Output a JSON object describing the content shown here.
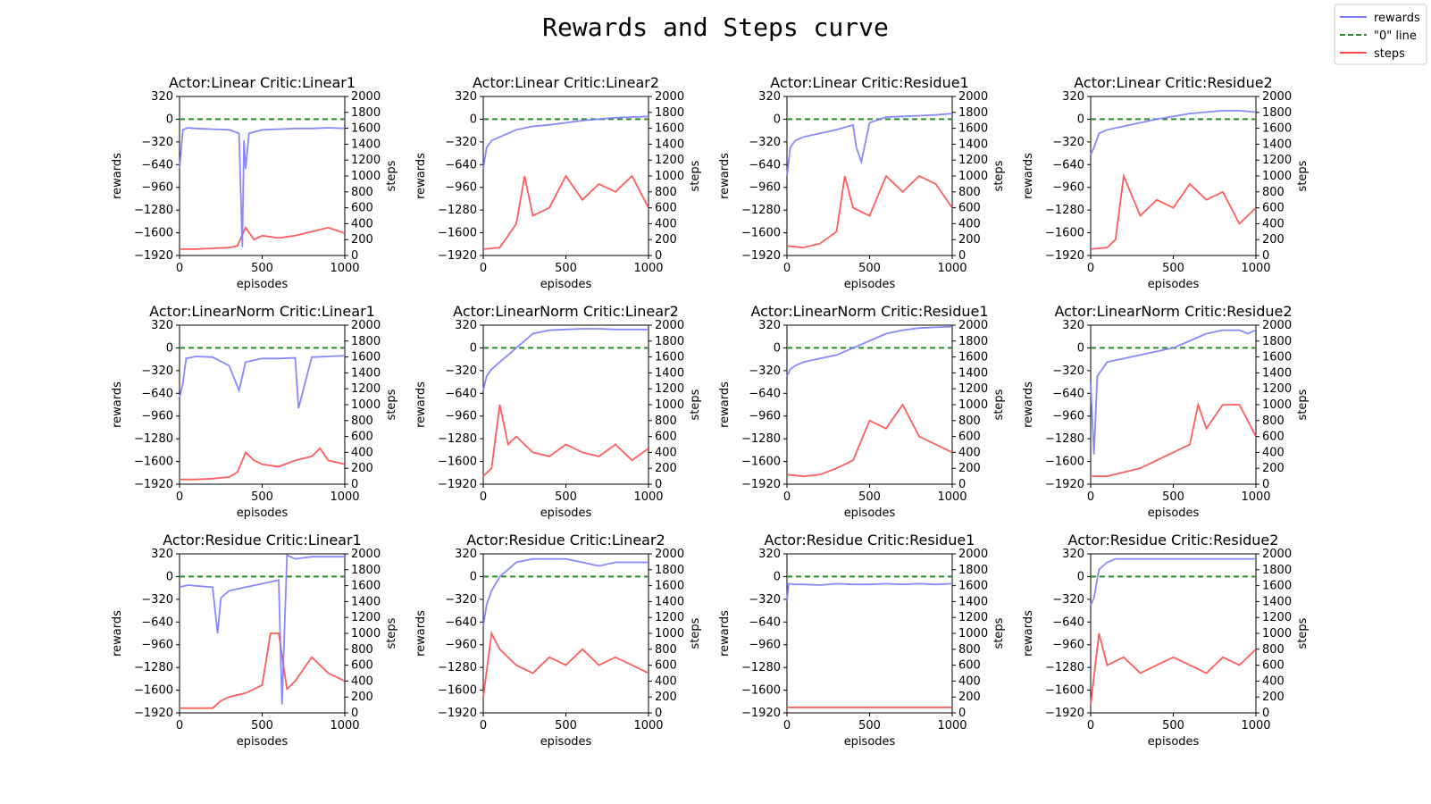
{
  "figure": {
    "title": "Rewards and Steps curve"
  },
  "legend": {
    "placement": "top-right",
    "items": [
      {
        "label": "rewards",
        "color": "#7b7bff",
        "dash": "solid"
      },
      {
        "label": "\"0\" line",
        "color": "#2a8a2a",
        "dash": "dashed"
      },
      {
        "label": "steps",
        "color": "#ff4a4a",
        "dash": "solid"
      }
    ]
  },
  "axes_text": {
    "xlabel": "episodes",
    "ylabel_left": "rewards",
    "ylabel_right": "steps",
    "x_ticks": [
      "0",
      "500",
      "1000"
    ],
    "y_left_ticks": [
      "320",
      "0",
      "−320",
      "−640",
      "−960",
      "−1280",
      "−1600",
      "−1920"
    ],
    "y_right_ticks": [
      "2000",
      "1800",
      "1600",
      "1400",
      "1200",
      "1000",
      "800",
      "600",
      "400",
      "200",
      "0"
    ]
  },
  "chart_data": {
    "type": "line",
    "layout": "3x4 grid of dual-axis subplots",
    "xlim": [
      0,
      1000
    ],
    "ylim_rewards": [
      -1920,
      320
    ],
    "ylim_steps": [
      0,
      2000
    ],
    "series_names": [
      "rewards",
      "\"0\" line",
      "steps"
    ],
    "zero_line": 0,
    "subplots": [
      {
        "title": "Actor:Linear   Critic:Linear1",
        "rewards": {
          "x": [
            0,
            20,
            50,
            100,
            200,
            300,
            360,
            380,
            390,
            400,
            420,
            500,
            600,
            700,
            800,
            900,
            1000
          ],
          "y": [
            -700,
            -150,
            -120,
            -130,
            -140,
            -150,
            -200,
            -1800,
            -300,
            -700,
            -200,
            -150,
            -140,
            -130,
            -130,
            -120,
            -130
          ]
        },
        "steps": {
          "x": [
            0,
            100,
            200,
            300,
            350,
            400,
            450,
            500,
            600,
            700,
            800,
            900,
            1000
          ],
          "y": [
            80,
            80,
            90,
            100,
            120,
            350,
            200,
            250,
            220,
            250,
            300,
            350,
            280
          ]
        }
      },
      {
        "title": "Actor:Linear   Critic:Linear2",
        "rewards": {
          "x": [
            0,
            20,
            50,
            100,
            150,
            200,
            300,
            400,
            500,
            600,
            700,
            800,
            900,
            1000
          ],
          "y": [
            -700,
            -400,
            -300,
            -250,
            -200,
            -150,
            -100,
            -80,
            -50,
            -20,
            0,
            20,
            30,
            40
          ]
        },
        "steps": {
          "x": [
            0,
            100,
            150,
            200,
            250,
            300,
            400,
            500,
            600,
            700,
            800,
            900,
            1000
          ],
          "y": [
            80,
            100,
            250,
            400,
            1000,
            500,
            600,
            1000,
            700,
            900,
            800,
            1000,
            600
          ]
        }
      },
      {
        "title": "Actor:Linear   Critic:Residue1",
        "rewards": {
          "x": [
            0,
            20,
            50,
            100,
            200,
            300,
            400,
            420,
            450,
            500,
            600,
            700,
            800,
            900,
            1000
          ],
          "y": [
            -800,
            -400,
            -300,
            -250,
            -200,
            -150,
            -80,
            -400,
            -600,
            -50,
            30,
            40,
            50,
            60,
            80
          ]
        },
        "steps": {
          "x": [
            0,
            100,
            200,
            300,
            350,
            400,
            500,
            600,
            700,
            800,
            900,
            1000
          ],
          "y": [
            120,
            100,
            150,
            300,
            1000,
            600,
            500,
            1000,
            800,
            1000,
            900,
            600
          ]
        }
      },
      {
        "title": "Actor:Linear   Critic:Residue2",
        "rewards": {
          "x": [
            0,
            20,
            50,
            100,
            200,
            300,
            400,
            500,
            600,
            700,
            800,
            900,
            1000
          ],
          "y": [
            -500,
            -400,
            -200,
            -150,
            -100,
            -50,
            0,
            40,
            80,
            100,
            120,
            120,
            100
          ]
        },
        "steps": {
          "x": [
            0,
            100,
            150,
            200,
            300,
            400,
            500,
            600,
            700,
            800,
            900,
            1000
          ],
          "y": [
            80,
            100,
            200,
            1000,
            500,
            700,
            600,
            900,
            700,
            800,
            400,
            600
          ]
        }
      },
      {
        "title": "Actor:LinearNorm   Critic:Linear1",
        "rewards": {
          "x": [
            0,
            20,
            40,
            100,
            200,
            300,
            360,
            400,
            500,
            600,
            700,
            720,
            800,
            900,
            1000
          ],
          "y": [
            -700,
            -500,
            -150,
            -120,
            -130,
            -250,
            -600,
            -200,
            -150,
            -150,
            -140,
            -850,
            -130,
            -120,
            -110
          ]
        },
        "steps": {
          "x": [
            0,
            100,
            200,
            300,
            350,
            400,
            450,
            500,
            600,
            700,
            800,
            850,
            900,
            1000
          ],
          "y": [
            60,
            60,
            70,
            90,
            150,
            400,
            300,
            250,
            220,
            300,
            350,
            450,
            300,
            250
          ]
        }
      },
      {
        "title": "Actor:LinearNorm   Critic:Linear2",
        "rewards": {
          "x": [
            0,
            20,
            50,
            100,
            150,
            200,
            250,
            300,
            400,
            500,
            600,
            700,
            800,
            900,
            1000
          ],
          "y": [
            -600,
            -400,
            -300,
            -200,
            -100,
            0,
            100,
            200,
            250,
            260,
            270,
            270,
            260,
            260,
            260
          ]
        },
        "steps": {
          "x": [
            0,
            50,
            100,
            150,
            200,
            300,
            400,
            500,
            600,
            700,
            800,
            900,
            1000
          ],
          "y": [
            100,
            200,
            1000,
            500,
            600,
            400,
            350,
            500,
            400,
            350,
            500,
            300,
            450
          ]
        }
      },
      {
        "title": "Actor:LinearNorm   Critic:Residue1",
        "rewards": {
          "x": [
            0,
            20,
            50,
            100,
            200,
            300,
            400,
            500,
            600,
            700,
            800,
            900,
            1000
          ],
          "y": [
            -400,
            -300,
            -250,
            -200,
            -150,
            -100,
            0,
            100,
            200,
            250,
            280,
            290,
            300
          ]
        },
        "steps": {
          "x": [
            0,
            100,
            200,
            300,
            400,
            500,
            600,
            700,
            800,
            900,
            1000
          ],
          "y": [
            120,
            100,
            120,
            200,
            300,
            800,
            700,
            1000,
            600,
            500,
            400
          ]
        }
      },
      {
        "title": "Actor:LinearNorm   Critic:Residue2",
        "rewards": {
          "x": [
            0,
            20,
            40,
            100,
            200,
            300,
            400,
            500,
            600,
            700,
            800,
            900,
            950,
            1000
          ],
          "y": [
            -500,
            -1500,
            -400,
            -200,
            -150,
            -100,
            -50,
            0,
            100,
            200,
            250,
            250,
            200,
            250
          ]
        },
        "steps": {
          "x": [
            0,
            100,
            200,
            300,
            400,
            500,
            600,
            650,
            700,
            800,
            900,
            1000
          ],
          "y": [
            100,
            100,
            150,
            200,
            300,
            400,
            500,
            1000,
            700,
            1000,
            1000,
            600
          ]
        }
      },
      {
        "title": "Actor:Residue   Critic:Linear1",
        "rewards": {
          "x": [
            0,
            50,
            100,
            200,
            230,
            250,
            300,
            400,
            500,
            600,
            620,
            650,
            700,
            800,
            900,
            1000
          ],
          "y": [
            -150,
            -120,
            -130,
            -150,
            -800,
            -300,
            -200,
            -150,
            -100,
            -50,
            -1800,
            300,
            250,
            280,
            280,
            280
          ]
        },
        "steps": {
          "x": [
            0,
            100,
            200,
            250,
            300,
            400,
            500,
            550,
            600,
            650,
            700,
            800,
            900,
            1000
          ],
          "y": [
            60,
            60,
            60,
            150,
            200,
            250,
            350,
            1000,
            1000,
            300,
            400,
            700,
            500,
            400
          ]
        }
      },
      {
        "title": "Actor:Residue   Critic:Linear2",
        "rewards": {
          "x": [
            0,
            20,
            50,
            100,
            150,
            200,
            300,
            400,
            500,
            600,
            700,
            800,
            900,
            1000
          ],
          "y": [
            -700,
            -400,
            -200,
            0,
            100,
            200,
            250,
            250,
            250,
            200,
            150,
            200,
            200,
            200
          ]
        },
        "steps": {
          "x": [
            0,
            50,
            100,
            200,
            300,
            400,
            500,
            600,
            700,
            800,
            900,
            1000
          ],
          "y": [
            200,
            1000,
            800,
            600,
            500,
            700,
            600,
            800,
            600,
            700,
            600,
            500
          ]
        }
      },
      {
        "title": "Actor:Residue   Critic:Residue1",
        "rewards": {
          "x": [
            0,
            10,
            50,
            100,
            200,
            300,
            400,
            500,
            600,
            700,
            800,
            900,
            1000
          ],
          "y": [
            -350,
            -100,
            -110,
            -110,
            -120,
            -100,
            -110,
            -110,
            -100,
            -110,
            -100,
            -110,
            -100
          ]
        },
        "steps": {
          "x": [
            0,
            100,
            200,
            300,
            400,
            500,
            600,
            700,
            800,
            900,
            1000
          ],
          "y": [
            70,
            70,
            70,
            70,
            70,
            70,
            70,
            70,
            70,
            70,
            70
          ]
        }
      },
      {
        "title": "Actor:Residue   Critic:Residue2",
        "rewards": {
          "x": [
            0,
            20,
            50,
            100,
            150,
            200,
            300,
            400,
            500,
            600,
            700,
            800,
            900,
            1000
          ],
          "y": [
            -400,
            -300,
            100,
            200,
            250,
            250,
            250,
            250,
            250,
            250,
            250,
            250,
            250,
            250
          ]
        },
        "steps": {
          "x": [
            0,
            50,
            100,
            200,
            300,
            400,
            500,
            600,
            700,
            800,
            900,
            1000
          ],
          "y": [
            100,
            1000,
            600,
            700,
            500,
            600,
            700,
            600,
            500,
            700,
            600,
            800
          ]
        }
      }
    ]
  }
}
